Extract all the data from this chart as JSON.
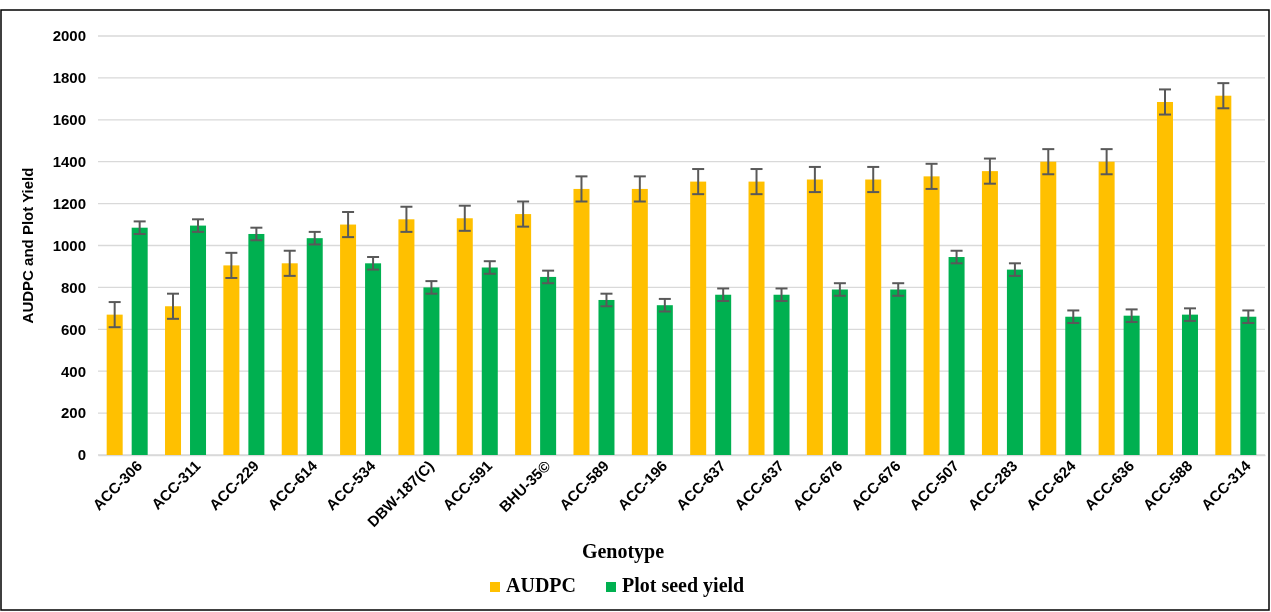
{
  "chart_data": {
    "type": "bar",
    "xlabel": "Genotype",
    "ylabel": "AUDPC and Plot Yield",
    "categories": [
      "ACC-306",
      "ACC-311",
      "ACC-229",
      "ACC-614",
      "ACC-534",
      "DBW-187(C)",
      "ACC-591",
      "BHU-35©",
      "ACC-589",
      "ACC-196",
      "ACC-637",
      "ACC-637",
      "ACC-676",
      "ACC-676",
      "ACC-507",
      "ACC-283",
      "ACC-624",
      "ACC-636",
      "ACC-588",
      "ACC-314"
    ],
    "series": [
      {
        "name": "AUDPC",
        "color": "#ffc000",
        "values": [
          670,
          710,
          905,
          915,
          1100,
          1125,
          1130,
          1150,
          1270,
          1270,
          1305,
          1305,
          1315,
          1315,
          1330,
          1355,
          1400,
          1400,
          1685,
          1715
        ],
        "errors": [
          60,
          60,
          60,
          60,
          60,
          60,
          60,
          60,
          60,
          60,
          60,
          60,
          60,
          60,
          60,
          60,
          60,
          60,
          60,
          60
        ]
      },
      {
        "name": "Plot seed yield",
        "color": "#00b050",
        "values": [
          1085,
          1095,
          1055,
          1035,
          915,
          800,
          895,
          850,
          740,
          715,
          765,
          765,
          790,
          790,
          945,
          885,
          660,
          665,
          670,
          660
        ],
        "errors": [
          30,
          30,
          30,
          30,
          30,
          30,
          30,
          30,
          30,
          30,
          30,
          30,
          30,
          30,
          30,
          30,
          30,
          30,
          30,
          30
        ]
      }
    ],
    "ylim": [
      0,
      2000
    ],
    "yticks": [
      0,
      200,
      400,
      600,
      800,
      1000,
      1200,
      1400,
      1600,
      1800,
      2000
    ],
    "grid": "y",
    "legend": "bottom"
  }
}
